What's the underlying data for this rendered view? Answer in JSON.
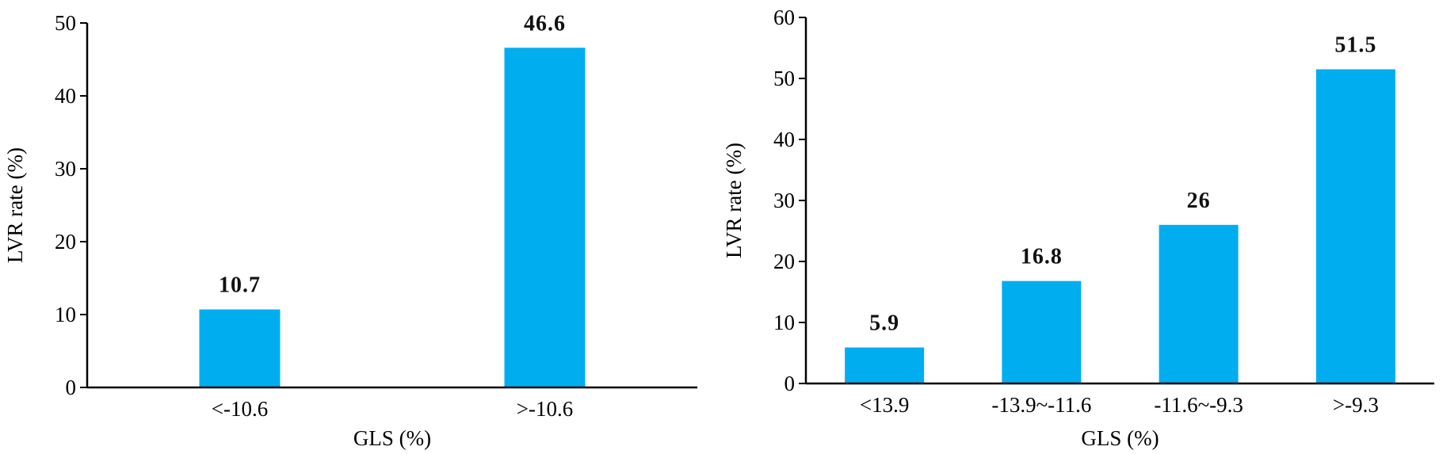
{
  "colors": {
    "bar": "#00AEEF",
    "axis": "#000000"
  },
  "chart_data": [
    {
      "type": "bar",
      "categories": [
        "<-10.6",
        ">-10.6"
      ],
      "values": [
        10.7,
        46.6
      ],
      "data_labels": [
        "10.7",
        "46.6"
      ],
      "xlabel": "GLS (%)",
      "ylabel": "LVR rate (%)",
      "ylim": [
        0,
        50
      ],
      "yticks": [
        0,
        10,
        20,
        30,
        40,
        50
      ],
      "grid": false
    },
    {
      "type": "bar",
      "categories": [
        "<13.9",
        "-13.9~-11.6",
        "-11.6~-9.3",
        ">-9.3"
      ],
      "values": [
        5.9,
        16.8,
        26,
        51.5
      ],
      "data_labels": [
        "5.9",
        "16.8",
        "26",
        "51.5"
      ],
      "xlabel": "GLS (%)",
      "ylabel": "LVR rate (%)",
      "ylim": [
        0,
        60
      ],
      "yticks": [
        0,
        10,
        20,
        30,
        40,
        50,
        60
      ],
      "grid": false
    }
  ]
}
